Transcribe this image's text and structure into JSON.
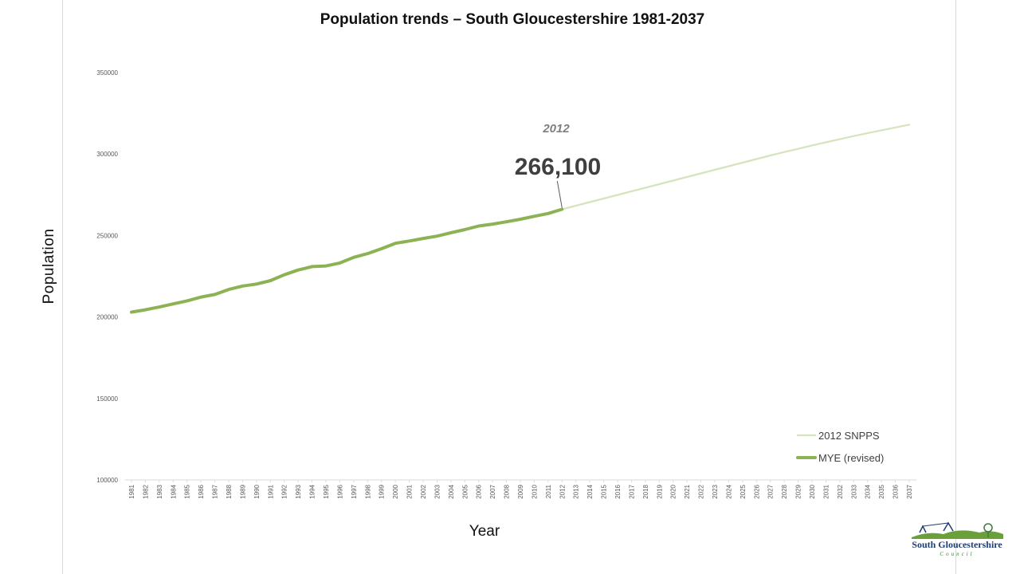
{
  "chart_data": {
    "type": "line",
    "title": "Population trends – South Gloucestershire 1981-2037",
    "xlabel": "Year",
    "ylabel": "Population",
    "ylim": [
      100000,
      350000
    ],
    "yticks": [
      100000,
      150000,
      200000,
      250000,
      300000,
      350000
    ],
    "xlim": [
      1981,
      2037
    ],
    "grid": false,
    "legend_position": "bottom-right",
    "series": [
      {
        "name": "MYE (revised)",
        "color": "#8db254",
        "x": [
          1981,
          1982,
          1983,
          1984,
          1985,
          1986,
          1987,
          1988,
          1989,
          1990,
          1991,
          1992,
          1993,
          1994,
          1995,
          1996,
          1997,
          1998,
          1999,
          2000,
          2001,
          2002,
          2003,
          2004,
          2005,
          2006,
          2007,
          2008,
          2009,
          2010,
          2011,
          2012
        ],
        "values": [
          203000,
          204400,
          206100,
          208000,
          209900,
          212200,
          213800,
          216900,
          219000,
          220200,
          222300,
          225900,
          228800,
          230900,
          231300,
          233100,
          236600,
          238900,
          241900,
          245200,
          246600,
          248200,
          249600,
          251700,
          253600,
          255800,
          257000,
          258400,
          260000,
          261800,
          263500,
          266100
        ]
      },
      {
        "name": "2012 SNPPS",
        "color": "#d5e4bd",
        "x": [
          2012,
          2013,
          2014,
          2015,
          2016,
          2017,
          2018,
          2019,
          2020,
          2021,
          2022,
          2023,
          2024,
          2025,
          2026,
          2027,
          2028,
          2029,
          2030,
          2031,
          2032,
          2033,
          2034,
          2035,
          2036,
          2037
        ],
        "values": [
          266100,
          268300,
          270500,
          272700,
          274900,
          277100,
          279300,
          281500,
          283700,
          285900,
          288100,
          290300,
          292500,
          294700,
          296900,
          299100,
          301200,
          303200,
          305300,
          307200,
          309100,
          311000,
          312800,
          314600,
          316300,
          318000
        ]
      }
    ],
    "annotations": [
      {
        "year_label": "2012",
        "value_label": "266,100",
        "x": 2012,
        "y": 266100
      }
    ]
  },
  "logo": {
    "name": "South Gloucestershire",
    "subtitle": "Council"
  }
}
